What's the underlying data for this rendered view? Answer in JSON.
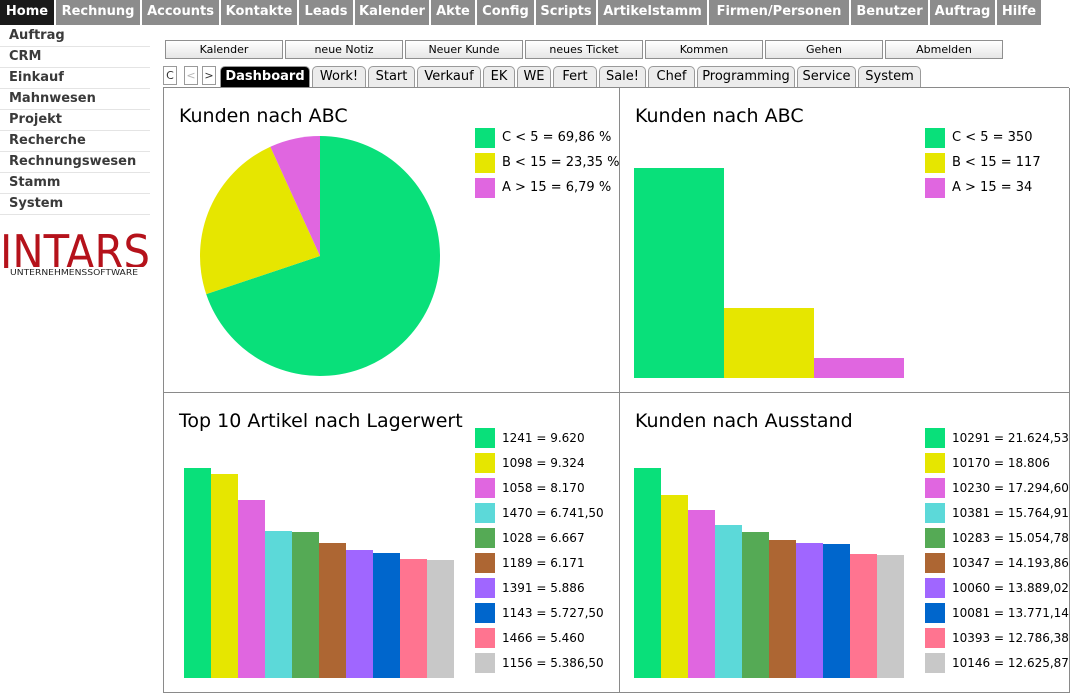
{
  "topnav": [
    {
      "label": "Home",
      "active": true
    },
    {
      "label": "Rechnung"
    },
    {
      "label": "Accounts"
    },
    {
      "label": "Kontakte"
    },
    {
      "label": "Leads"
    },
    {
      "label": "Kalender"
    },
    {
      "label": "Akte"
    },
    {
      "label": "Config"
    },
    {
      "label": "Scripts"
    },
    {
      "label": "Artikelstamm"
    },
    {
      "label": "Firmen/Personen"
    },
    {
      "label": "Benutzer"
    },
    {
      "label": "Auftrag"
    },
    {
      "label": "Hilfe"
    }
  ],
  "sidebar": [
    "Auftrag",
    "CRM",
    "Einkauf",
    "Mahnwesen",
    "Projekt",
    "Recherche",
    "Rechnungswesen",
    "Stamm",
    "System"
  ],
  "logo": {
    "name": "INTARS",
    "tagline": "UNTERNEHMENSSOFTWARE",
    "color": "#b5121b"
  },
  "actions": [
    "Kalender",
    "neue Notiz",
    "Neuer Kunde",
    "neues Ticket",
    "Kommen",
    "Gehen",
    "Abmelden"
  ],
  "tabnav": {
    "collapse": "C",
    "prev": "<",
    "next": ">"
  },
  "tabs": [
    {
      "label": "Dashboard",
      "active": true
    },
    {
      "label": "Work!"
    },
    {
      "label": "Start"
    },
    {
      "label": "Verkauf"
    },
    {
      "label": "EK"
    },
    {
      "label": "WE"
    },
    {
      "label": "Fert"
    },
    {
      "label": "Sale!"
    },
    {
      "label": "Chef"
    },
    {
      "label": "Programming"
    },
    {
      "label": "Service"
    },
    {
      "label": "System"
    }
  ],
  "chart_data": [
    {
      "type": "pie",
      "title": "Kunden nach ABC",
      "categories": [
        "C < 5",
        "B < 15",
        "A > 15"
      ],
      "values": [
        69.86,
        23.35,
        6.79
      ],
      "labels": [
        "C < 5 = 69,86 %",
        "B < 15 = 23,35 %",
        "A > 15 = 6,79 %"
      ],
      "colors": [
        "#09e07a",
        "#e6e600",
        "#e066e0"
      ]
    },
    {
      "type": "bar",
      "title": "Kunden nach ABC",
      "categories": [
        "C < 5",
        "B < 15",
        "A > 15"
      ],
      "values": [
        350,
        117,
        34
      ],
      "labels": [
        "C < 5 = 350",
        "B < 15 = 117",
        "A > 15 = 34"
      ],
      "colors": [
        "#09e07a",
        "#e6e600",
        "#e066e0"
      ]
    },
    {
      "type": "bar",
      "title": "Top 10 Artikel nach Lagerwert",
      "categories": [
        "1241",
        "1098",
        "1058",
        "1470",
        "1028",
        "1189",
        "1391",
        "1143",
        "1466",
        "1156"
      ],
      "values": [
        9620,
        9324,
        8170,
        6741.5,
        6667,
        6171,
        5886,
        5727.5,
        5460,
        5386.5
      ],
      "labels": [
        "1241 = 9.620",
        "1098 = 9.324",
        "1058 = 8.170",
        "1470 = 6.741,50",
        "1028 = 6.667",
        "1189 = 6.171",
        "1391 = 5.886",
        "1143 = 5.727,50",
        "1466 = 5.460",
        "1156 = 5.386,50"
      ],
      "colors": [
        "#09e07a",
        "#e6e600",
        "#e066e0",
        "#5cd9d9",
        "#55aa55",
        "#ad6633",
        "#a066ff",
        "#0066cc",
        "#ff7490",
        "#c8c8c8"
      ]
    },
    {
      "type": "bar",
      "title": "Kunden nach Ausstand",
      "categories": [
        "10291",
        "10170",
        "10230",
        "10381",
        "10283",
        "10347",
        "10060",
        "10081",
        "10393",
        "10146"
      ],
      "values": [
        21624.53,
        18806,
        17294.6,
        15764.91,
        15054.78,
        14193.86,
        13889.02,
        13771.14,
        12786.38,
        12625.87
      ],
      "labels": [
        "10291 = 21.624,53",
        "10170 = 18.806",
        "10230 = 17.294,60",
        "10381 = 15.764,91",
        "10283 = 15.054,78",
        "10347 = 14.193,86",
        "10060 = 13.889,02",
        "10081 = 13.771,14",
        "10393 = 12.786,38",
        "10146 = 12.625,87"
      ],
      "colors": [
        "#09e07a",
        "#e6e600",
        "#e066e0",
        "#5cd9d9",
        "#55aa55",
        "#ad6633",
        "#a066ff",
        "#0066cc",
        "#ff7490",
        "#c8c8c8"
      ]
    }
  ]
}
